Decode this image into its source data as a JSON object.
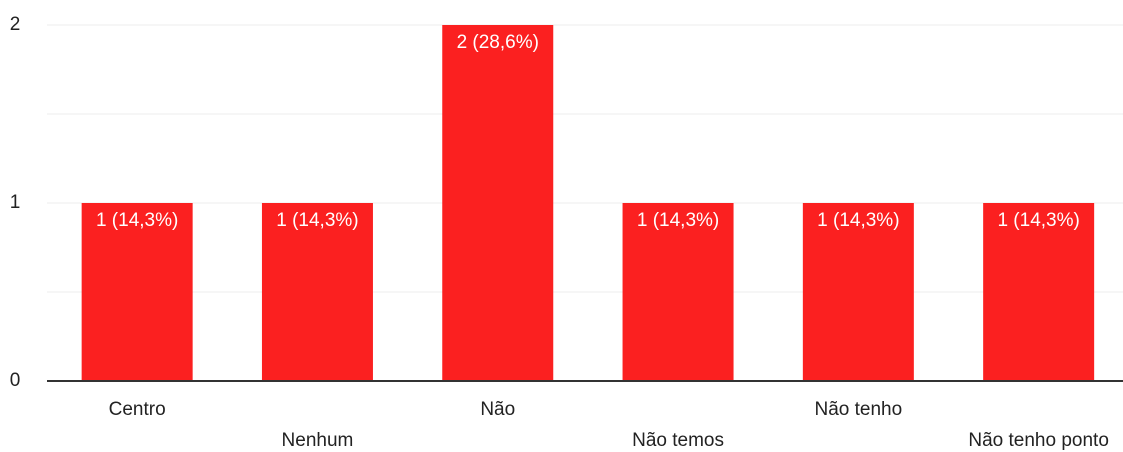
{
  "chart_data": {
    "type": "bar",
    "categories": [
      "Centro",
      "Nenhum",
      "Não",
      "Não temos",
      "Não tenho",
      "Não tenho ponto"
    ],
    "values": [
      1,
      1,
      2,
      1,
      1,
      1
    ],
    "value_labels": [
      "1 (14,3%)",
      "1 (14,3%)",
      "2 (28,6%)",
      "1 (14,3%)",
      "1 (14,3%)",
      "1 (14,3%)"
    ],
    "color": "#fb2020",
    "ylim": [
      0,
      2
    ],
    "yticks": [
      0,
      1,
      2
    ],
    "y_minor_ticks": [
      0.5,
      1.5
    ],
    "grid": true
  }
}
